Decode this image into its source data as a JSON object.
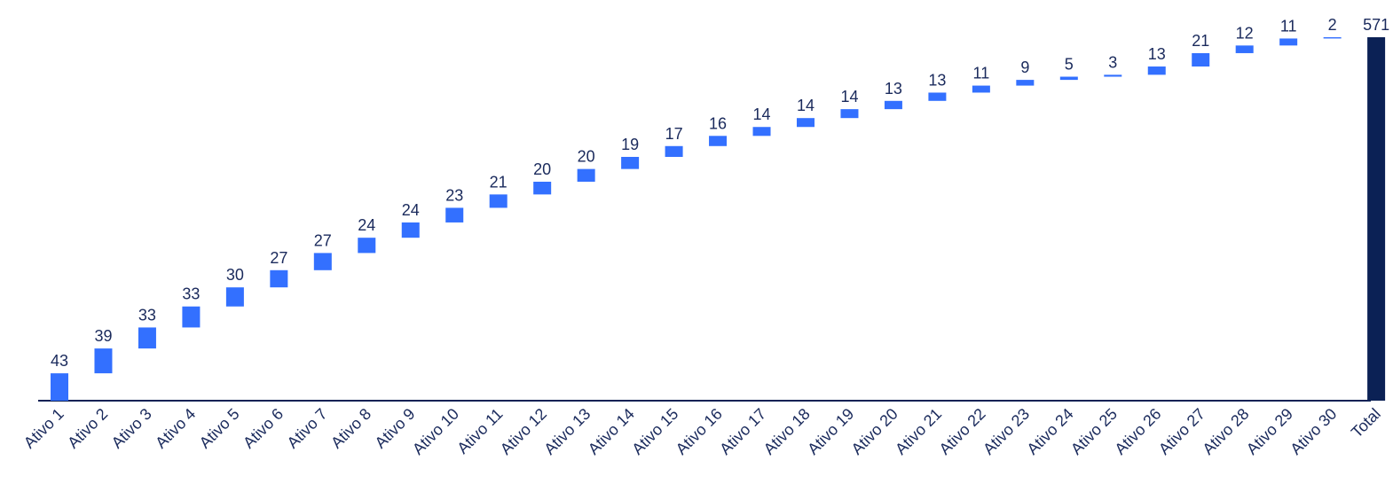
{
  "chart_data": {
    "type": "waterfall",
    "categories": [
      "Ativo 1",
      "Ativo 2",
      "Ativo 3",
      "Ativo 4",
      "Ativo 5",
      "Ativo 6",
      "Ativo 7",
      "Ativo 8",
      "Ativo 9",
      "Ativo 10",
      "Ativo 11",
      "Ativo 12",
      "Ativo 13",
      "Ativo 14",
      "Ativo 15",
      "Ativo 16",
      "Ativo 17",
      "Ativo 18",
      "Ativo 19",
      "Ativo 20",
      "Ativo 21",
      "Ativo 22",
      "Ativo 23",
      "Ativo 24",
      "Ativo 25",
      "Ativo 26",
      "Ativo 27",
      "Ativo 28",
      "Ativo 29",
      "Ativo 30",
      "Total"
    ],
    "values": [
      43,
      39,
      33,
      33,
      30,
      27,
      27,
      24,
      24,
      23,
      21,
      20,
      20,
      19,
      17,
      16,
      14,
      14,
      14,
      13,
      13,
      11,
      9,
      5,
      3,
      13,
      21,
      12,
      11,
      2,
      571
    ],
    "color": "#3370ff",
    "total_color": "#0b2155"
  }
}
